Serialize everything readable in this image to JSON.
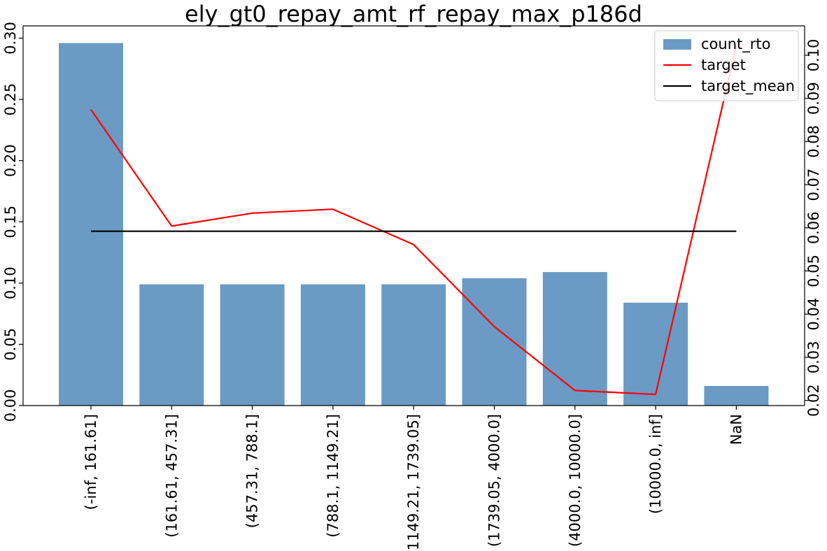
{
  "chart_data": {
    "type": "bar",
    "title": "ely_gt0_repay_amt_rf_repay_max_p186d",
    "categories": [
      "(-inf, 161.61]",
      "(161.61, 457.31]",
      "(457.31, 788.1]",
      "(788.1, 1149.21]",
      "(1149.21, 1739.05]",
      "(1739.05, 4000.0]",
      "(4000.0, 10000.0]",
      "(10000.0, inf]",
      "NaN"
    ],
    "series": [
      {
        "name": "count_rto",
        "type": "bar",
        "axis": "left",
        "color": "#6b9bc4",
        "values": [
          0.296,
          0.099,
          0.099,
          0.099,
          0.099,
          0.104,
          0.109,
          0.084,
          0.016
        ]
      },
      {
        "name": "target",
        "type": "line",
        "axis": "right",
        "color": "#ff0000",
        "values": [
          0.0874,
          0.0604,
          0.0634,
          0.0643,
          0.0561,
          0.0371,
          0.0223,
          0.0214,
          0.1022
        ]
      },
      {
        "name": "target_mean",
        "type": "line",
        "axis": "right",
        "color": "#000000",
        "values": [
          0.0592,
          0.0592,
          0.0592,
          0.0592,
          0.0592,
          0.0592,
          0.0592,
          0.0592,
          0.0592
        ]
      }
    ],
    "y_left": {
      "ylim": [
        0,
        0.31
      ],
      "ticks": [
        0.0,
        0.05,
        0.1,
        0.15,
        0.2,
        0.25,
        0.3
      ],
      "tick_labels": [
        "0.00",
        "0.05",
        "0.10",
        "0.15",
        "0.20",
        "0.25",
        "0.30"
      ]
    },
    "y_right": {
      "ylim": [
        0.0188,
        0.1068
      ],
      "ticks": [
        0.02,
        0.03,
        0.04,
        0.05,
        0.06,
        0.07,
        0.08,
        0.09,
        0.1
      ],
      "tick_labels": [
        "0.02",
        "0.03",
        "0.04",
        "0.05",
        "0.06",
        "0.07",
        "0.08",
        "0.09",
        "0.10"
      ]
    },
    "legend": "top-right",
    "grid": false
  }
}
